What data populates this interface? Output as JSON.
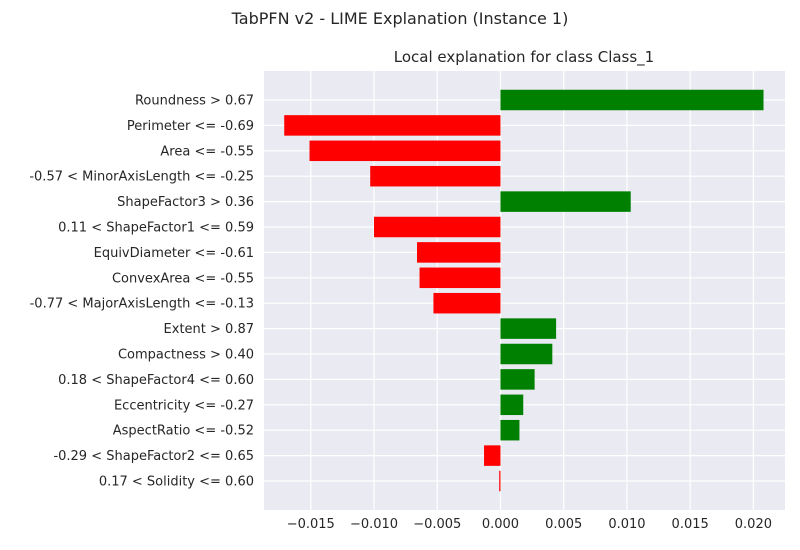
{
  "figure": {
    "suptitle": "TabPFN v2 - LIME Explanation (Instance 1)"
  },
  "chart_data": {
    "type": "bar",
    "orientation": "horizontal",
    "title": "Local explanation for class Class_1",
    "xlabel": "",
    "ylabel": "",
    "xlim": [
      -0.0187,
      0.0225
    ],
    "xticks": [
      -0.015,
      -0.01,
      -0.005,
      0.0,
      0.005,
      0.01,
      0.015,
      0.02
    ],
    "xtick_labels": [
      "−0.015",
      "−0.010",
      "−0.005",
      "0.000",
      "0.005",
      "0.010",
      "0.015",
      "0.020"
    ],
    "grid": true,
    "positive_color": "#008000",
    "negative_color": "#ff0000",
    "background_color": "#eaeaf2",
    "categories": [
      "Roundness > 0.67",
      "Perimeter <= -0.69",
      "Area <= -0.55",
      "-0.57 < MinorAxisLength <= -0.25",
      "ShapeFactor3 > 0.36",
      "0.11 < ShapeFactor1 <= 0.59",
      "EquivDiameter <= -0.61",
      "ConvexArea <= -0.55",
      "-0.77 < MajorAxisLength <= -0.13",
      "Extent > 0.87",
      "Compactness > 0.40",
      "0.18 < ShapeFactor4 <= 0.60",
      "Eccentricity <= -0.27",
      "AspectRatio <= -0.52",
      "-0.29 < ShapeFactor2 <= 0.65",
      "0.17 < Solidity <= 0.60"
    ],
    "values": [
      0.0208,
      -0.0171,
      -0.0151,
      -0.0103,
      0.0103,
      -0.01,
      -0.0066,
      -0.0064,
      -0.0053,
      0.0044,
      0.0041,
      0.0027,
      0.0018,
      0.0015,
      -0.0013,
      -0.0001
    ]
  }
}
